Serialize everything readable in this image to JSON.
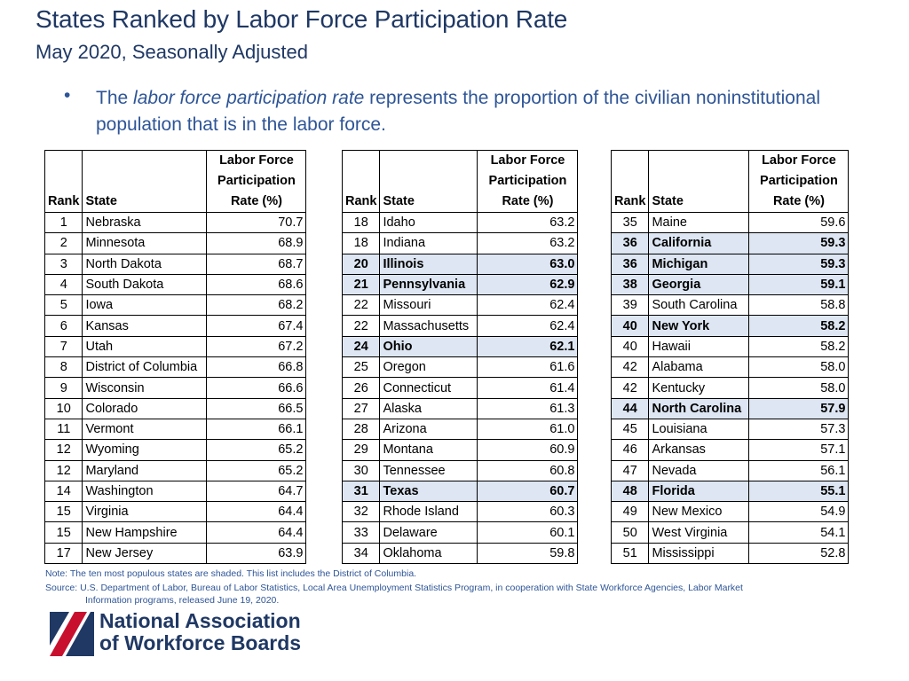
{
  "title": "States Ranked by Labor Force Participation Rate",
  "subtitle": "May 2020, Seasonally Adjusted",
  "bullet": {
    "before": "The ",
    "italic": "labor force participation rate",
    "after": " represents the proportion of the civilian noninstitutional population that is in the labor force."
  },
  "headers": {
    "rank": "Rank",
    "state": "State",
    "rate_line1": "Labor Force",
    "rate_line2": "Participation",
    "rate_line3": "Rate (%)"
  },
  "shade_color": "#DDE6F2",
  "tables": [
    [
      {
        "rank": "1",
        "state": "Nebraska",
        "rate": "70.7",
        "shaded": false
      },
      {
        "rank": "2",
        "state": "Minnesota",
        "rate": "68.9",
        "shaded": false
      },
      {
        "rank": "3",
        "state": "North Dakota",
        "rate": "68.7",
        "shaded": false
      },
      {
        "rank": "4",
        "state": "South Dakota",
        "rate": "68.6",
        "shaded": false
      },
      {
        "rank": "5",
        "state": "Iowa",
        "rate": "68.2",
        "shaded": false
      },
      {
        "rank": "6",
        "state": "Kansas",
        "rate": "67.4",
        "shaded": false
      },
      {
        "rank": "7",
        "state": "Utah",
        "rate": "67.2",
        "shaded": false
      },
      {
        "rank": "8",
        "state": "District of Columbia",
        "rate": "66.8",
        "shaded": false
      },
      {
        "rank": "9",
        "state": "Wisconsin",
        "rate": "66.6",
        "shaded": false
      },
      {
        "rank": "10",
        "state": "Colorado",
        "rate": "66.5",
        "shaded": false
      },
      {
        "rank": "11",
        "state": "Vermont",
        "rate": "66.1",
        "shaded": false
      },
      {
        "rank": "12",
        "state": "Wyoming",
        "rate": "65.2",
        "shaded": false
      },
      {
        "rank": "12",
        "state": "Maryland",
        "rate": "65.2",
        "shaded": false
      },
      {
        "rank": "14",
        "state": "Washington",
        "rate": "64.7",
        "shaded": false
      },
      {
        "rank": "15",
        "state": "Virginia",
        "rate": "64.4",
        "shaded": false
      },
      {
        "rank": "15",
        "state": "New Hampshire",
        "rate": "64.4",
        "shaded": false
      },
      {
        "rank": "17",
        "state": "New Jersey",
        "rate": "63.9",
        "shaded": false
      }
    ],
    [
      {
        "rank": "18",
        "state": "Idaho",
        "rate": "63.2",
        "shaded": false
      },
      {
        "rank": "18",
        "state": "Indiana",
        "rate": "63.2",
        "shaded": false
      },
      {
        "rank": "20",
        "state": "Illinois",
        "rate": "63.0",
        "shaded": true
      },
      {
        "rank": "21",
        "state": "Pennsylvania",
        "rate": "62.9",
        "shaded": true
      },
      {
        "rank": "22",
        "state": "Missouri",
        "rate": "62.4",
        "shaded": false
      },
      {
        "rank": "22",
        "state": "Massachusetts",
        "rate": "62.4",
        "shaded": false
      },
      {
        "rank": "24",
        "state": "Ohio",
        "rate": "62.1",
        "shaded": true
      },
      {
        "rank": "25",
        "state": "Oregon",
        "rate": "61.6",
        "shaded": false
      },
      {
        "rank": "26",
        "state": "Connecticut",
        "rate": "61.4",
        "shaded": false
      },
      {
        "rank": "27",
        "state": "Alaska",
        "rate": "61.3",
        "shaded": false
      },
      {
        "rank": "28",
        "state": "Arizona",
        "rate": "61.0",
        "shaded": false
      },
      {
        "rank": "29",
        "state": "Montana",
        "rate": "60.9",
        "shaded": false
      },
      {
        "rank": "30",
        "state": "Tennessee",
        "rate": "60.8",
        "shaded": false
      },
      {
        "rank": "31",
        "state": "Texas",
        "rate": "60.7",
        "shaded": true
      },
      {
        "rank": "32",
        "state": "Rhode Island",
        "rate": "60.3",
        "shaded": false
      },
      {
        "rank": "33",
        "state": "Delaware",
        "rate": "60.1",
        "shaded": false
      },
      {
        "rank": "34",
        "state": "Oklahoma",
        "rate": "59.8",
        "shaded": false
      }
    ],
    [
      {
        "rank": "35",
        "state": "Maine",
        "rate": "59.6",
        "shaded": false
      },
      {
        "rank": "36",
        "state": "California",
        "rate": "59.3",
        "shaded": true
      },
      {
        "rank": "36",
        "state": "Michigan",
        "rate": "59.3",
        "shaded": true
      },
      {
        "rank": "38",
        "state": "Georgia",
        "rate": "59.1",
        "shaded": true
      },
      {
        "rank": "39",
        "state": "South Carolina",
        "rate": "58.8",
        "shaded": false
      },
      {
        "rank": "40",
        "state": "New York",
        "rate": "58.2",
        "shaded": true
      },
      {
        "rank": "40",
        "state": "Hawaii",
        "rate": "58.2",
        "shaded": false
      },
      {
        "rank": "42",
        "state": "Alabama",
        "rate": "58.0",
        "shaded": false
      },
      {
        "rank": "42",
        "state": "Kentucky",
        "rate": "58.0",
        "shaded": false
      },
      {
        "rank": "44",
        "state": "North Carolina",
        "rate": "57.9",
        "shaded": true
      },
      {
        "rank": "45",
        "state": "Louisiana",
        "rate": "57.3",
        "shaded": false
      },
      {
        "rank": "46",
        "state": "Arkansas",
        "rate": "57.1",
        "shaded": false
      },
      {
        "rank": "47",
        "state": "Nevada",
        "rate": "56.1",
        "shaded": false
      },
      {
        "rank": "48",
        "state": "Florida",
        "rate": "55.1",
        "shaded": true
      },
      {
        "rank": "49",
        "state": "New Mexico",
        "rate": "54.9",
        "shaded": false
      },
      {
        "rank": "50",
        "state": "West Virginia",
        "rate": "54.1",
        "shaded": false
      },
      {
        "rank": "51",
        "state": "Mississippi",
        "rate": "52.8",
        "shaded": false
      }
    ]
  ],
  "note": "Note:  The ten most populous states are shaded.  This list includes the District of Columbia.",
  "source_line1": "Source:  U.S. Department of Labor, Bureau of Labor Statistics, Local Area Unemployment Statistics Program, in cooperation with State Workforce Agencies, Labor Market",
  "source_line2": "Information programs, released June 19, 2020.",
  "logo": {
    "line1": "National Association",
    "line2": "of Workforce Boards",
    "icon": "flag-stripes-icon"
  }
}
